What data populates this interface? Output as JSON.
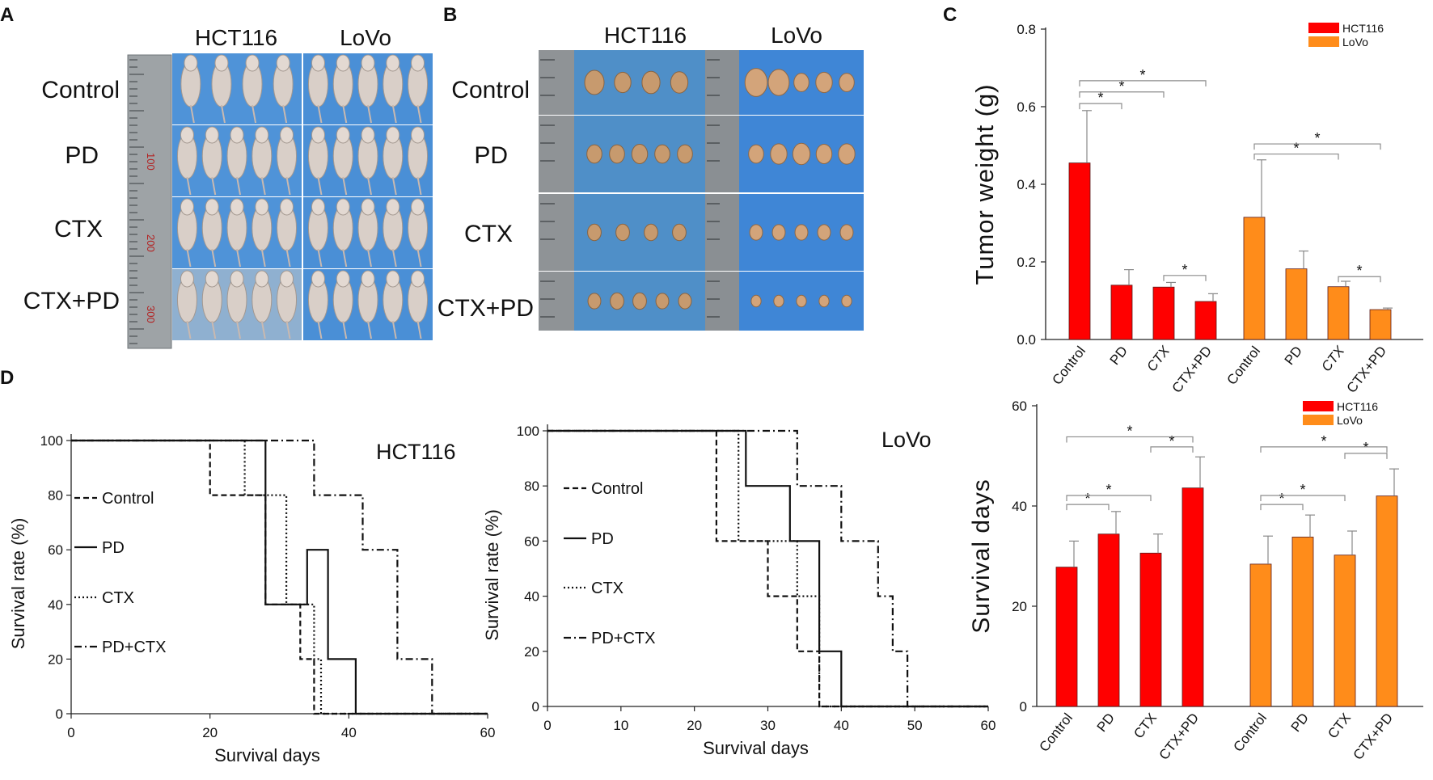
{
  "panels": {
    "A": {
      "letter": "A",
      "columns": [
        "HCT116",
        "LoVo"
      ],
      "rows": [
        "Control",
        "PD",
        "CTX",
        "CTX+PD"
      ],
      "ruler_marks": [
        "100",
        "200",
        "300"
      ],
      "description": "photographs of tumor-bearing nude mice"
    },
    "B": {
      "letter": "B",
      "columns": [
        "HCT116",
        "LoVo"
      ],
      "rows": [
        "Control",
        "PD",
        "CTX",
        "CTX+PD"
      ],
      "tumor_counts": {
        "HCT116": [
          4,
          5,
          4,
          5
        ],
        "LoVo": [
          5,
          5,
          5,
          5
        ]
      },
      "description": "photographs of excised tumors"
    },
    "C_letter": "C",
    "D_letter": "D"
  },
  "colors": {
    "hct116": "#ff0000",
    "lovo": "#ff8c1a",
    "axis": "#222222",
    "sig": "#8c8c8c"
  },
  "chart_data": [
    {
      "id": "tumor-weight",
      "type": "bar",
      "ylabel": "Tumor weight (g)",
      "ylim": [
        0,
        0.8
      ],
      "yticks": [
        "0.0",
        "0.2",
        "0.4",
        "0.6",
        "0.8"
      ],
      "yticks_values": [
        0,
        0.2,
        0.4,
        0.6,
        0.8
      ],
      "legend": [
        "HCT116",
        "LoVo"
      ],
      "groups": [
        {
          "name": "HCT116",
          "categories": [
            "Control",
            "PD",
            "CTX",
            "CTX+PD"
          ],
          "values": [
            0.455,
            0.14,
            0.135,
            0.098
          ],
          "errors": [
            0.135,
            0.04,
            0.012,
            0.02
          ]
        },
        {
          "name": "LoVo",
          "categories": [
            "Control",
            "PD",
            "CTX",
            "CTX+PD"
          ],
          "values": [
            0.315,
            0.182,
            0.136,
            0.077
          ],
          "errors": [
            0.148,
            0.046,
            0.014,
            0.004
          ]
        }
      ],
      "significance": [
        {
          "group": 0,
          "from": 0,
          "to": 1,
          "level": 0.608,
          "label": "*"
        },
        {
          "group": 0,
          "from": 0,
          "to": 2,
          "level": 0.638,
          "label": "*"
        },
        {
          "group": 0,
          "from": 0,
          "to": 3,
          "level": 0.667,
          "label": "*"
        },
        {
          "group": 0,
          "from": 2,
          "to": 3,
          "level": 0.165,
          "label": "*"
        },
        {
          "group": 1,
          "from": 0,
          "to": 2,
          "level": 0.478,
          "label": "*"
        },
        {
          "group": 1,
          "from": 0,
          "to": 3,
          "level": 0.504,
          "label": "*"
        },
        {
          "group": 1,
          "from": 2,
          "to": 3,
          "level": 0.162,
          "label": "*"
        }
      ]
    },
    {
      "id": "survival-hct116",
      "type": "line",
      "title": "HCT116",
      "xlabel": "Survival days",
      "ylabel": "Survival rate (%)",
      "xlim": [
        0,
        60
      ],
      "ylim": [
        0,
        100
      ],
      "xticks": [
        "0",
        "20",
        "40",
        "60"
      ],
      "xticks_values": [
        0,
        20,
        40,
        60
      ],
      "yticks": [
        "0",
        "20",
        "40",
        "60",
        "80",
        "100"
      ],
      "yticks_values": [
        0,
        20,
        40,
        60,
        80,
        100
      ],
      "series": [
        {
          "name": "Control",
          "dash": "dashed",
          "x": [
            0,
            20,
            20,
            28,
            28,
            33,
            33,
            35,
            35,
            60
          ],
          "y": [
            100,
            100,
            80,
            80,
            40,
            40,
            20,
            20,
            0,
            0
          ]
        },
        {
          "name": "PD",
          "dash": "solid",
          "x": [
            0,
            28,
            28,
            34,
            34,
            37,
            37,
            41,
            41,
            60
          ],
          "y": [
            100,
            100,
            40,
            40,
            60,
            60,
            20,
            20,
            0,
            0
          ]
        },
        {
          "name": "CTX",
          "dash": "dotted",
          "x": [
            0,
            25,
            25,
            31,
            31,
            35,
            35,
            36,
            36,
            60
          ],
          "y": [
            100,
            100,
            80,
            80,
            40,
            40,
            20,
            20,
            0,
            0
          ]
        },
        {
          "name": "PD+CTX",
          "dash": "dashdot",
          "x": [
            0,
            35,
            35,
            42,
            42,
            47,
            47,
            52,
            52,
            60
          ],
          "y": [
            100,
            100,
            80,
            80,
            60,
            60,
            20,
            20,
            0,
            0
          ]
        }
      ]
    },
    {
      "id": "survival-lovo",
      "type": "line",
      "title": "LoVo",
      "xlabel": "Survival days",
      "ylabel": "Survival rate (%)",
      "xlim": [
        0,
        60
      ],
      "ylim": [
        0,
        100
      ],
      "xticks": [
        "0",
        "10",
        "20",
        "30",
        "40",
        "50",
        "60"
      ],
      "xticks_values": [
        0,
        10,
        20,
        30,
        40,
        50,
        60
      ],
      "yticks": [
        "0",
        "20",
        "40",
        "60",
        "80",
        "100"
      ],
      "yticks_values": [
        0,
        20,
        40,
        60,
        80,
        100
      ],
      "series": [
        {
          "name": "Control",
          "dash": "dashed",
          "x": [
            0,
            23,
            23,
            30,
            30,
            34,
            34,
            37,
            37,
            60
          ],
          "y": [
            100,
            100,
            60,
            60,
            40,
            40,
            20,
            20,
            0,
            0
          ]
        },
        {
          "name": "PD",
          "dash": "solid",
          "x": [
            0,
            27,
            27,
            33,
            33,
            37,
            37,
            40,
            40,
            60
          ],
          "y": [
            100,
            100,
            80,
            80,
            60,
            60,
            20,
            20,
            0,
            0
          ]
        },
        {
          "name": "CTX",
          "dash": "dotted",
          "x": [
            0,
            26,
            26,
            34,
            34,
            37,
            37,
            60
          ],
          "y": [
            100,
            100,
            60,
            60,
            40,
            40,
            0,
            0
          ]
        },
        {
          "name": "PD+CTX",
          "dash": "dashdot",
          "x": [
            0,
            34,
            34,
            40,
            40,
            45,
            45,
            47,
            47,
            49,
            49,
            60
          ],
          "y": [
            100,
            100,
            80,
            80,
            60,
            60,
            40,
            40,
            20,
            20,
            0,
            0
          ]
        }
      ]
    },
    {
      "id": "survival-days",
      "type": "bar",
      "ylabel": "Survival days",
      "ylim": [
        0,
        60
      ],
      "yticks": [
        "0",
        "20",
        "40",
        "60"
      ],
      "yticks_values": [
        0,
        20,
        40,
        60
      ],
      "legend": [
        "HCT116",
        "LoVo"
      ],
      "groups": [
        {
          "name": "HCT116",
          "categories": [
            "Control",
            "PD",
            "CTX",
            "CTX+PD"
          ],
          "values": [
            27.8,
            34.4,
            30.6,
            43.6
          ],
          "errors": [
            5.2,
            4.5,
            3.8,
            6.2
          ]
        },
        {
          "name": "LoVo",
          "categories": [
            "Control",
            "PD",
            "CTX",
            "CTX+PD"
          ],
          "values": [
            28.4,
            33.8,
            30.2,
            42.0
          ],
          "errors": [
            5.6,
            4.4,
            4.8,
            5.4
          ]
        }
      ],
      "significance": [
        {
          "group": 0,
          "from": 0,
          "to": 1,
          "level": 40.3,
          "label": "*"
        },
        {
          "group": 0,
          "from": 0,
          "to": 2,
          "level": 42.1,
          "label": "*"
        },
        {
          "group": 0,
          "from": 2,
          "to": 3,
          "level": 51.8,
          "label": "*"
        },
        {
          "group": 0,
          "from": 0,
          "to": 3,
          "level": 53.8,
          "label": "*"
        },
        {
          "group": 1,
          "from": 0,
          "to": 1,
          "level": 40.3,
          "label": "*"
        },
        {
          "group": 1,
          "from": 0,
          "to": 2,
          "level": 42.1,
          "label": "*"
        },
        {
          "group": 1,
          "from": 2,
          "to": 3,
          "level": 50.5,
          "label": "*"
        },
        {
          "group": 1,
          "from": 0,
          "to": 3,
          "level": 51.8,
          "label": "*"
        }
      ]
    }
  ]
}
